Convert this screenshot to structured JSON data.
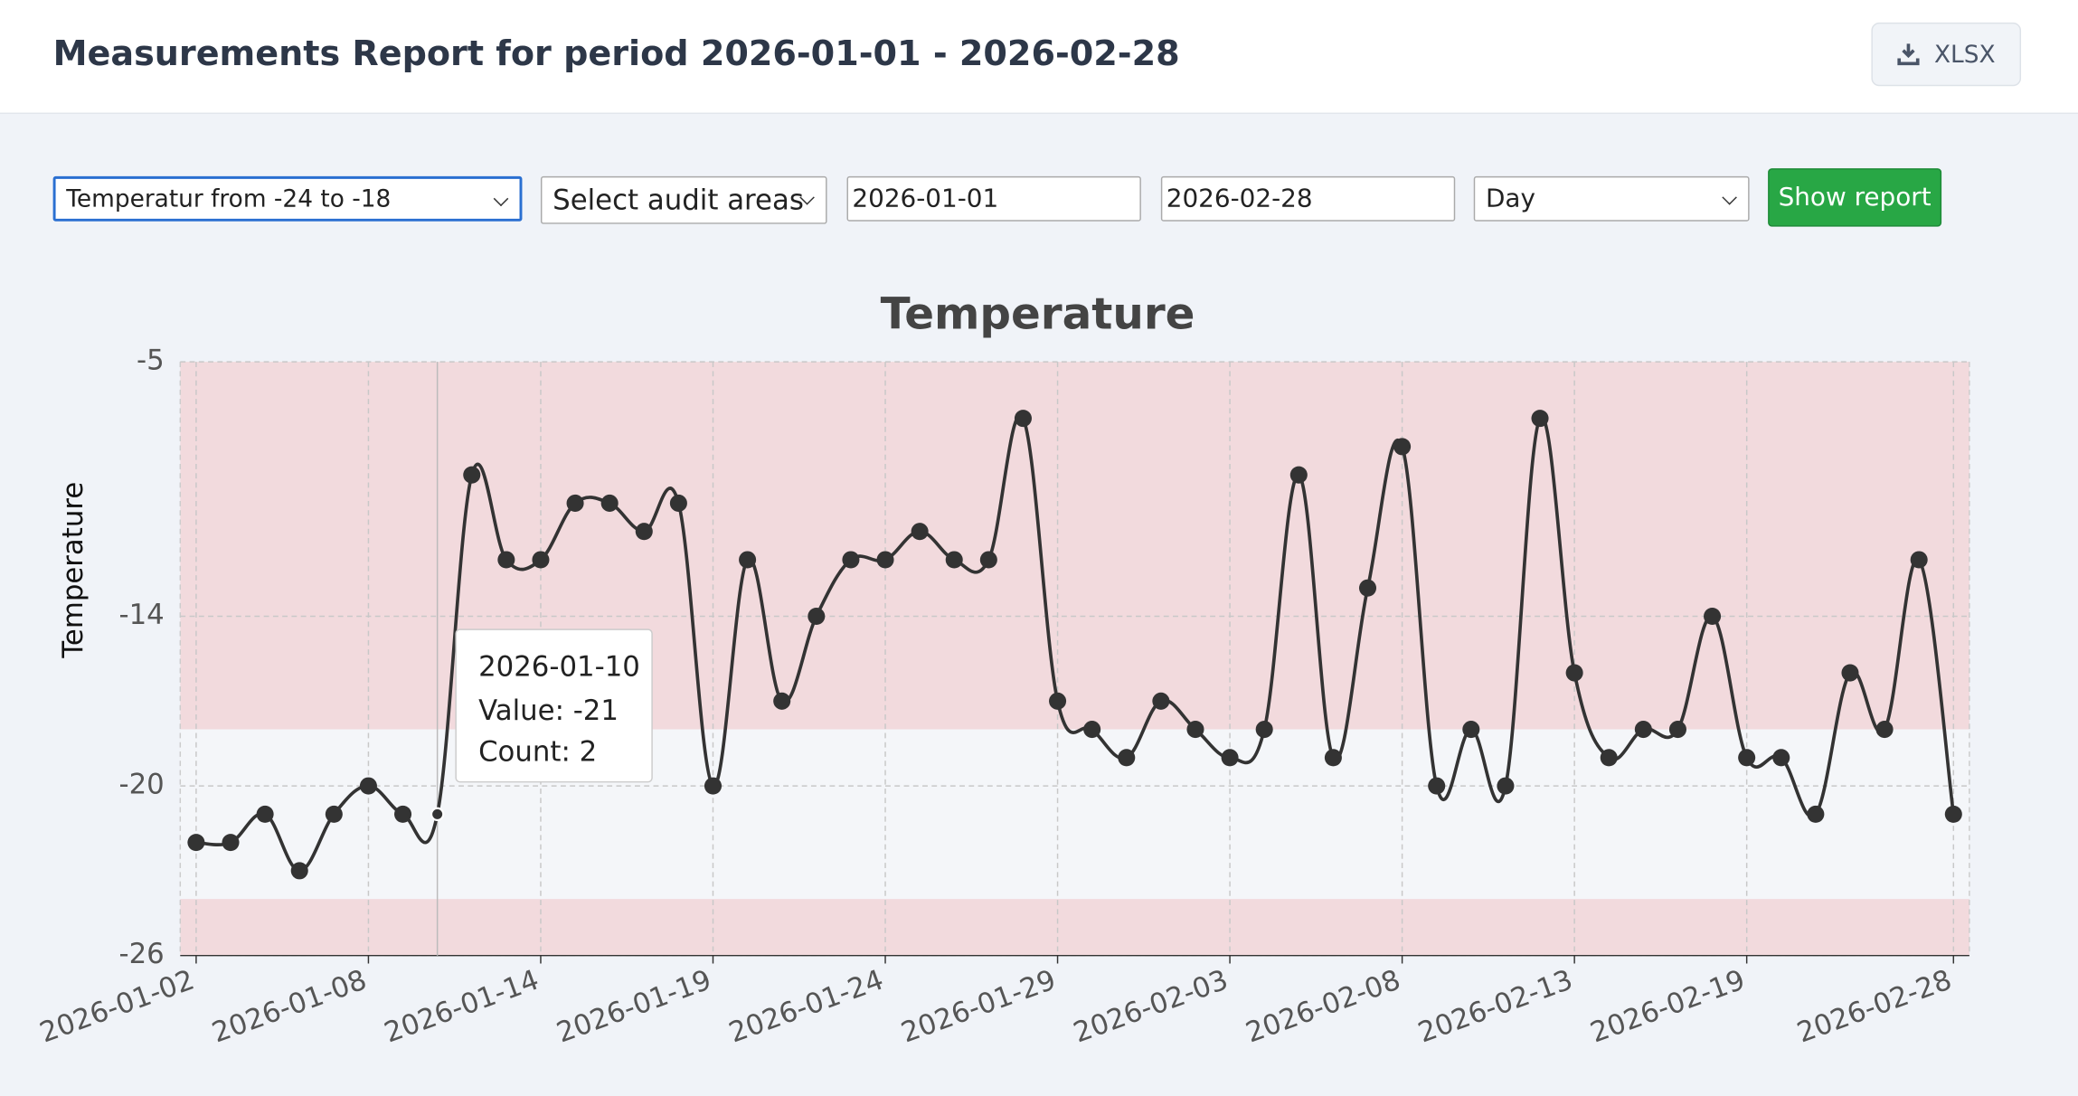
{
  "header": {
    "title": "Measurements Report for period 2026-01-01 - 2026-02-28",
    "export_button": "XLSX"
  },
  "controls": {
    "measure_select": "Temperatur from -24 to -18",
    "areas_select": "Select audit areas",
    "date_from": "2026-01-01",
    "date_to": "2026-02-28",
    "interval_select": "Day",
    "submit_button": "Show report"
  },
  "chart_data": {
    "type": "line",
    "title": "Temperature",
    "y_label": "Temperature",
    "categories": [
      "2026-01-02",
      null,
      null,
      null,
      null,
      "2026-01-08",
      null,
      null,
      null,
      null,
      "2026-01-14",
      null,
      null,
      null,
      null,
      "2026-01-19",
      null,
      null,
      null,
      null,
      "2026-01-24",
      null,
      null,
      null,
      null,
      "2026-01-29",
      null,
      null,
      null,
      null,
      "2026-02-03",
      null,
      null,
      null,
      null,
      "2026-02-08",
      null,
      null,
      null,
      null,
      "2026-02-13",
      null,
      null,
      null,
      null,
      "2026-02-19",
      null,
      null,
      null,
      null,
      null,
      "2026-02-28"
    ],
    "series": [
      {
        "name": "Temperature",
        "color": "#333333",
        "values": [
          -22,
          -22,
          -21,
          -23,
          -21,
          -20,
          -21,
          -21,
          -9,
          -12,
          -12,
          -10,
          -10,
          -11,
          -10,
          -20,
          -12,
          -17,
          -14,
          -12,
          -12,
          -11,
          -12,
          -12,
          -7,
          -17,
          -18,
          -19,
          -17,
          -18,
          -19,
          -18,
          -9,
          -19,
          -13,
          -8,
          -20,
          -18,
          -20,
          -7,
          -16,
          -19,
          -18,
          -18,
          -14,
          -19,
          -19,
          -21,
          -16,
          -18,
          -12,
          -21
        ]
      }
    ],
    "ylim": [
      -26,
      -5
    ],
    "yticks": [
      -26,
      -20,
      -14,
      -5
    ],
    "grid": true,
    "ok_range": [
      -24,
      -18
    ],
    "out_of_range_color": "#f2dadd",
    "ok_range_color": "#f4f6f9",
    "tooltip": {
      "title": "2026-01-10",
      "lines": [
        "Value: -21",
        "Count: 2"
      ]
    }
  }
}
